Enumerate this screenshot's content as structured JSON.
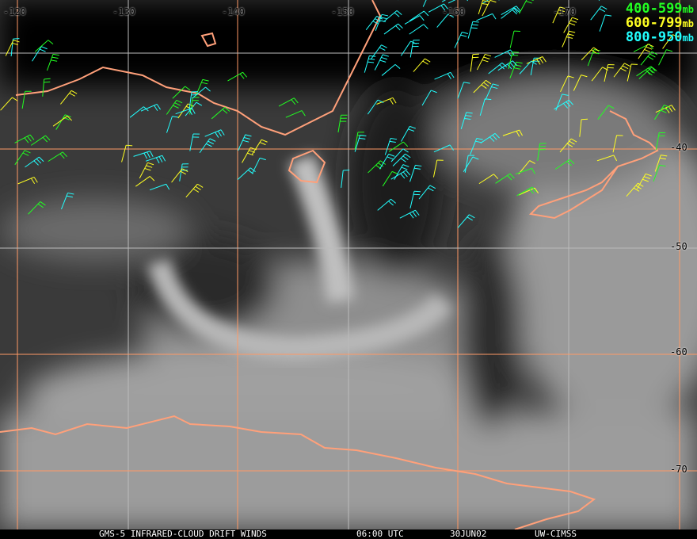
{
  "map": {
    "longitude_labels": [
      "-120",
      "-130",
      "-140",
      "-150",
      "-160",
      "-170"
    ],
    "latitude_labels": [
      "-40",
      "-50",
      "-60",
      "-70"
    ],
    "grid_color": "#ff9966",
    "coast_color": "#ffa07a"
  },
  "legend": [
    {
      "range": "400-599",
      "unit": "mb",
      "color": "#22ff22"
    },
    {
      "range": "600-799",
      "unit": "mb",
      "color": "#ffff22"
    },
    {
      "range": "800-950",
      "unit": "mb",
      "color": "#22ffff"
    }
  ],
  "caption": {
    "product": "GMS-5 INFRARED-CLOUD DRIFT WINDS",
    "time": "06:00 UTC",
    "date": "30JUN02",
    "source": "UW-CIMSS"
  }
}
